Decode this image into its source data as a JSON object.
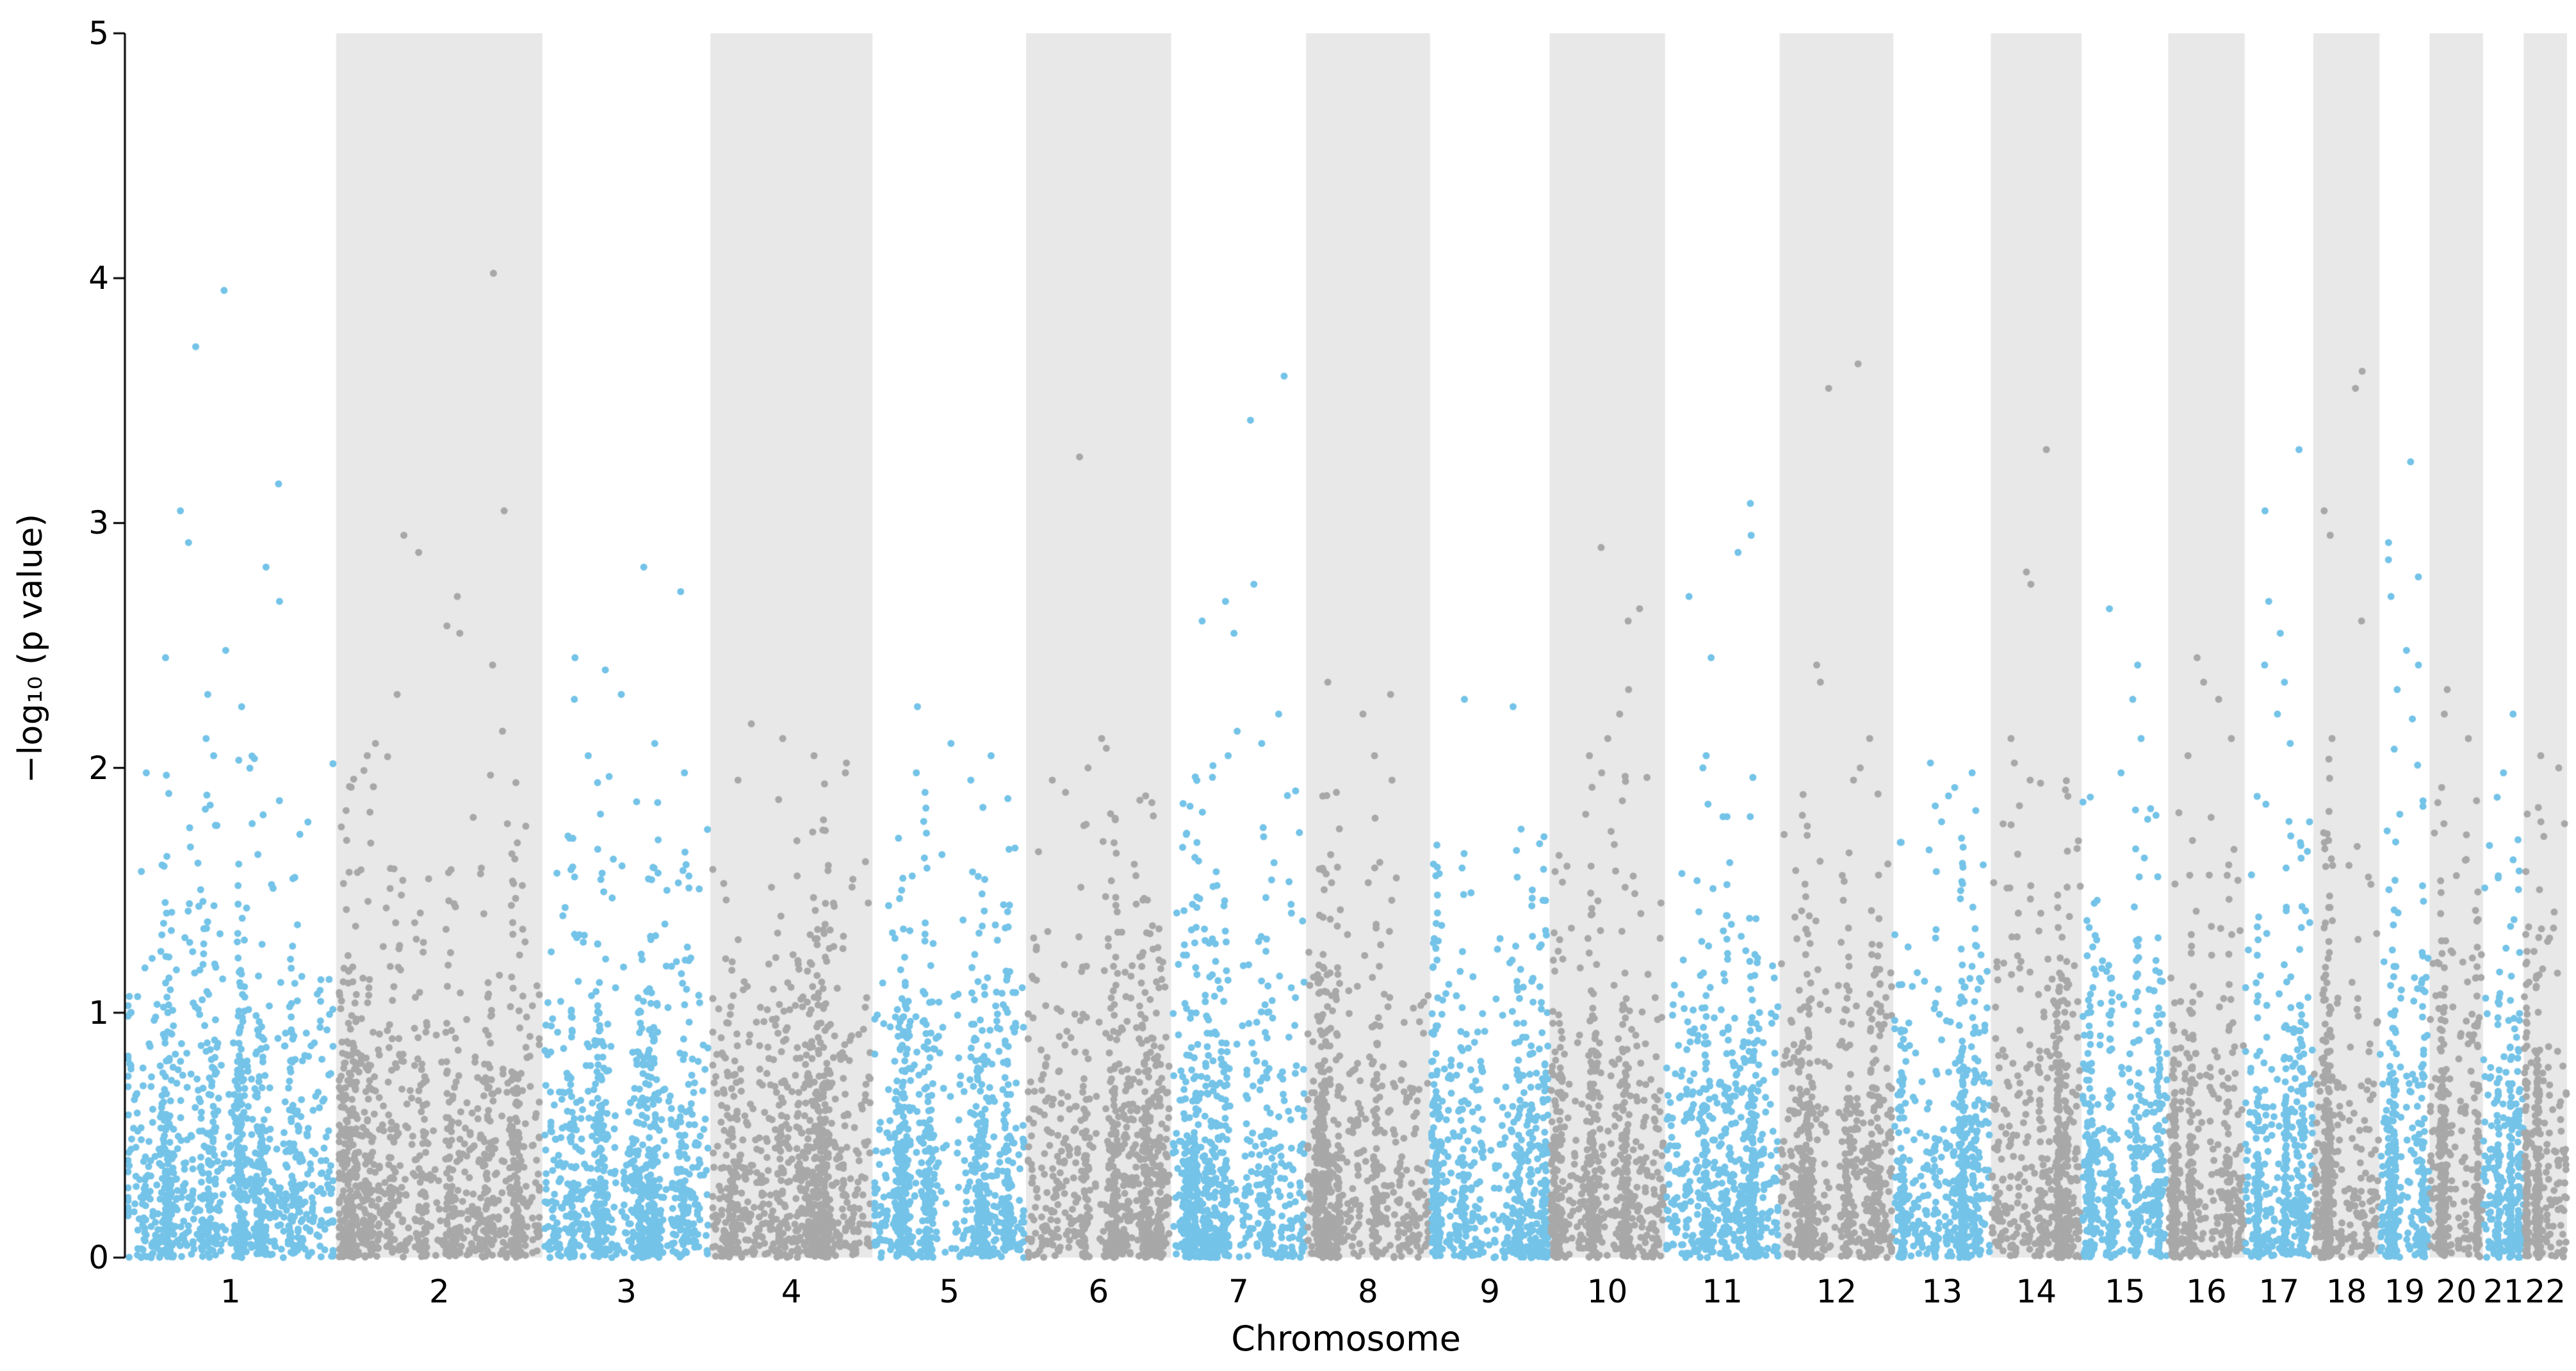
{
  "chart_data": {
    "type": "scatter",
    "variant": "manhattan",
    "title": "",
    "xlabel": "Chromosome",
    "ylabel": "−log₁₀ (p value)",
    "ylim": [
      0,
      5
    ],
    "yticks": [
      "0",
      "1",
      "2",
      "3",
      "4",
      "5"
    ],
    "grid": false,
    "legend": "none",
    "colors": {
      "odd_chrom_points": "#74C3E8",
      "even_chrom_points": "#A8A8A8",
      "even_chrom_band": "#E8E8E8",
      "axis": "#000000",
      "text": "#000000",
      "background": "#FFFFFF"
    },
    "seed": 1337,
    "points_per_mb": 4.2,
    "base_points": 120,
    "chromosomes": [
      {
        "label": "1",
        "length_mb": 249,
        "peaks": [
          3.95,
          3.72,
          3.16,
          3.05,
          2.92,
          2.82,
          2.68,
          2.48,
          2.45,
          2.3,
          2.25,
          2.12,
          2.05
        ]
      },
      {
        "label": "2",
        "length_mb": 243,
        "peaks": [
          4.02,
          3.05,
          2.95,
          2.88,
          2.7,
          2.58,
          2.55,
          2.42,
          2.3,
          2.15,
          2.1,
          2.05
        ]
      },
      {
        "label": "3",
        "length_mb": 198,
        "peaks": [
          2.82,
          2.72,
          2.45,
          2.4,
          2.3,
          2.28,
          2.1,
          2.05,
          1.98
        ]
      },
      {
        "label": "4",
        "length_mb": 191,
        "peaks": [
          2.18,
          2.12,
          2.05,
          2.02,
          1.98,
          1.95
        ]
      },
      {
        "label": "5",
        "length_mb": 181,
        "peaks": [
          2.25,
          2.1,
          2.05,
          1.98,
          1.95,
          1.9
        ]
      },
      {
        "label": "6",
        "length_mb": 171,
        "peaks": [
          3.27,
          2.12,
          2.08,
          2.0,
          1.95,
          1.9
        ]
      },
      {
        "label": "7",
        "length_mb": 159,
        "peaks": [
          3.6,
          3.42,
          2.75,
          2.68,
          2.6,
          2.55,
          2.22,
          2.15,
          2.1,
          2.05
        ]
      },
      {
        "label": "8",
        "length_mb": 146,
        "peaks": [
          2.35,
          2.3,
          2.22,
          2.05,
          1.95,
          1.9
        ]
      },
      {
        "label": "9",
        "length_mb": 141,
        "peaks": [
          2.28,
          2.25,
          1.75,
          1.65
        ]
      },
      {
        "label": "10",
        "length_mb": 136,
        "peaks": [
          2.9,
          2.65,
          2.6,
          2.32,
          2.22,
          2.12,
          2.05,
          1.98
        ]
      },
      {
        "label": "11",
        "length_mb": 135,
        "peaks": [
          3.08,
          2.95,
          2.88,
          2.7,
          2.45,
          2.05,
          2.0
        ]
      },
      {
        "label": "12",
        "length_mb": 134,
        "peaks": [
          3.65,
          3.55,
          2.42,
          2.35,
          2.12,
          2.0,
          1.95
        ]
      },
      {
        "label": "13",
        "length_mb": 115,
        "peaks": [
          2.02,
          1.98,
          1.92,
          1.78
        ]
      },
      {
        "label": "14",
        "length_mb": 107,
        "peaks": [
          3.3,
          2.8,
          2.75,
          2.12,
          2.02,
          1.95
        ]
      },
      {
        "label": "15",
        "length_mb": 102,
        "peaks": [
          2.65,
          2.42,
          2.28,
          2.12,
          1.98
        ]
      },
      {
        "label": "16",
        "length_mb": 90,
        "peaks": [
          2.45,
          2.35,
          2.28,
          2.12,
          2.05
        ]
      },
      {
        "label": "17",
        "length_mb": 81,
        "peaks": [
          3.3,
          3.05,
          2.68,
          2.55,
          2.42,
          2.35,
          2.22,
          2.1
        ]
      },
      {
        "label": "18",
        "length_mb": 78,
        "peaks": [
          3.62,
          3.55,
          3.05,
          2.95,
          2.6,
          2.12
        ]
      },
      {
        "label": "19",
        "length_mb": 59,
        "peaks": [
          3.25,
          2.92,
          2.85,
          2.78,
          2.7,
          2.48,
          2.42,
          2.32,
          2.2
        ]
      },
      {
        "label": "20",
        "length_mb": 63,
        "peaks": [
          2.32,
          2.22,
          2.12,
          1.92
        ]
      },
      {
        "label": "21",
        "length_mb": 48,
        "peaks": [
          2.22,
          1.98,
          1.88
        ]
      },
      {
        "label": "22",
        "length_mb": 51,
        "peaks": [
          2.05,
          2.0,
          1.78,
          1.72
        ]
      }
    ]
  }
}
